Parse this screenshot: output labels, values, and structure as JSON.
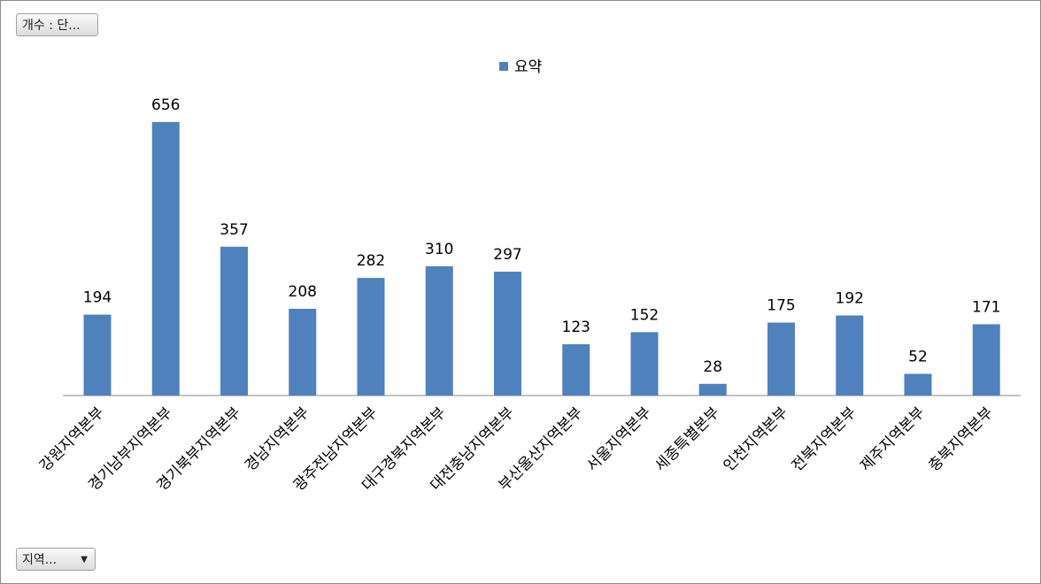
{
  "pivot_buttons": {
    "value_field": "개수 : 단...",
    "axis_field": "지역..."
  },
  "chart_data": {
    "type": "bar",
    "categories": [
      "강원지역본부",
      "경기남부지역본부",
      "경기북부지역본부",
      "경남지역본부",
      "광주전남지역본부",
      "대구경북지역본부",
      "대전충남지역본부",
      "부산울산지역본부",
      "서울지역본부",
      "세종특별본부",
      "인천지역본부",
      "전북지역본부",
      "제주지역본부",
      "충북지역본부"
    ],
    "series": [
      {
        "name": "요약",
        "color": "#4f81bd",
        "values": [
          194,
          656,
          357,
          208,
          282,
          310,
          297,
          123,
          152,
          28,
          175,
          192,
          52,
          171
        ]
      }
    ]
  }
}
